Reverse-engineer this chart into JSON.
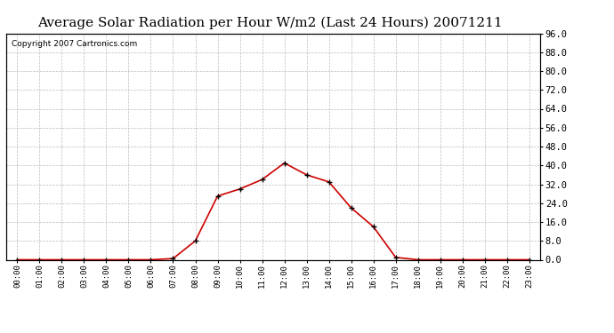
{
  "title": "Average Solar Radiation per Hour W/m2 (Last 24 Hours) 20071211",
  "copyright": "Copyright 2007 Cartronics.com",
  "hours": [
    "00:00",
    "01:00",
    "02:00",
    "03:00",
    "04:00",
    "05:00",
    "06:00",
    "07:00",
    "08:00",
    "09:00",
    "10:00",
    "11:00",
    "12:00",
    "13:00",
    "14:00",
    "15:00",
    "16:00",
    "17:00",
    "18:00",
    "19:00",
    "20:00",
    "21:00",
    "22:00",
    "23:00"
  ],
  "values": [
    0.0,
    0.0,
    0.0,
    0.0,
    0.0,
    0.0,
    0.0,
    0.5,
    8.0,
    27.0,
    30.0,
    34.0,
    41.0,
    36.0,
    33.0,
    22.0,
    14.0,
    1.0,
    0.0,
    0.0,
    0.0,
    0.0,
    0.0,
    0.0
  ],
  "y_ticks": [
    0.0,
    8.0,
    16.0,
    24.0,
    32.0,
    40.0,
    48.0,
    56.0,
    64.0,
    72.0,
    80.0,
    88.0,
    96.0
  ],
  "ylim": [
    0,
    96
  ],
  "xlim": [
    -0.5,
    23.5
  ],
  "line_color": "#cc0000",
  "marker_color": "#000000",
  "background_color": "#ffffff",
  "grid_color": "#bbbbbb",
  "title_fontsize": 11,
  "copyright_fontsize": 6.5
}
